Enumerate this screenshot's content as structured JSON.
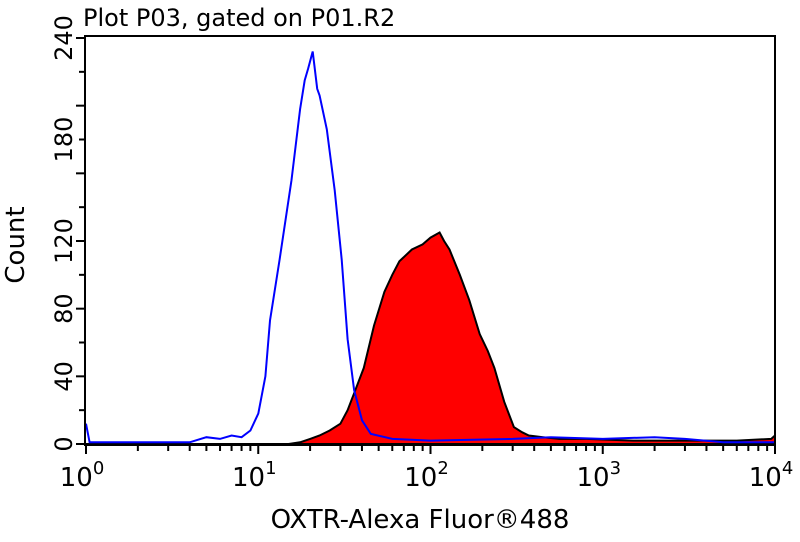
{
  "chart_data": {
    "type": "area",
    "title": "Plot P03, gated on P01.R2",
    "xlabel": "OXTR-Alexa Fluor®488",
    "ylabel": "Count",
    "xscale": "log",
    "xlim": [
      1,
      10000
    ],
    "ylim": [
      0,
      240
    ],
    "x_ticks": [
      {
        "base": "10",
        "exp": "0"
      },
      {
        "base": "10",
        "exp": "1"
      },
      {
        "base": "10",
        "exp": "2"
      },
      {
        "base": "10",
        "exp": "3"
      },
      {
        "base": "10",
        "exp": "4"
      }
    ],
    "y_ticks": [
      "0",
      "40",
      "80",
      "120",
      "180",
      "240"
    ],
    "y_tick_values": [
      0,
      40,
      80,
      120,
      180,
      240
    ],
    "grid": false,
    "series": [
      {
        "style": "line",
        "color": "#0000ff",
        "points": [
          [
            1,
            12
          ],
          [
            1.05,
            1
          ],
          [
            2,
            1
          ],
          [
            4,
            1
          ],
          [
            5,
            4
          ],
          [
            6,
            3
          ],
          [
            7,
            5
          ],
          [
            8,
            4
          ],
          [
            9,
            8
          ],
          [
            10,
            18
          ],
          [
            11,
            40
          ],
          [
            11.7,
            73
          ],
          [
            13.3,
            109
          ],
          [
            15.6,
            156
          ],
          [
            17.5,
            198
          ],
          [
            18.6,
            215
          ],
          [
            19.5,
            222
          ],
          [
            20.7,
            232
          ],
          [
            22,
            210
          ],
          [
            22.7,
            206
          ],
          [
            25,
            186
          ],
          [
            27.8,
            150
          ],
          [
            30.5,
            109
          ],
          [
            33,
            62
          ],
          [
            36,
            32
          ],
          [
            40,
            14
          ],
          [
            45,
            6
          ],
          [
            60,
            3
          ],
          [
            100,
            2
          ],
          [
            300,
            3
          ],
          [
            500,
            4
          ],
          [
            1000,
            3
          ],
          [
            2000,
            4
          ],
          [
            3000,
            3
          ],
          [
            5000,
            1
          ],
          [
            10000,
            1
          ]
        ]
      },
      {
        "style": "filled",
        "color": "#ff0000",
        "outline": "#000000",
        "points": [
          [
            1,
            0
          ],
          [
            15,
            0
          ],
          [
            17.5,
            1
          ],
          [
            20,
            3
          ],
          [
            22.7,
            5
          ],
          [
            26,
            8
          ],
          [
            30,
            12
          ],
          [
            33,
            20
          ],
          [
            36,
            30
          ],
          [
            41,
            45
          ],
          [
            47,
            70
          ],
          [
            54,
            90
          ],
          [
            60,
            100
          ],
          [
            66,
            108
          ],
          [
            78,
            115
          ],
          [
            90,
            118
          ],
          [
            100,
            122
          ],
          [
            113,
            125
          ],
          [
            120,
            120
          ],
          [
            129,
            115
          ],
          [
            148,
            100
          ],
          [
            168,
            85
          ],
          [
            193,
            65
          ],
          [
            215,
            55
          ],
          [
            235,
            45
          ],
          [
            268,
            25
          ],
          [
            305,
            10
          ],
          [
            340,
            7
          ],
          [
            372,
            5
          ],
          [
            450,
            4
          ],
          [
            560,
            3
          ],
          [
            800,
            3
          ],
          [
            1500,
            2
          ],
          [
            3000,
            2
          ],
          [
            6000,
            2
          ],
          [
            9500,
            3
          ],
          [
            10000,
            5
          ]
        ]
      }
    ]
  }
}
